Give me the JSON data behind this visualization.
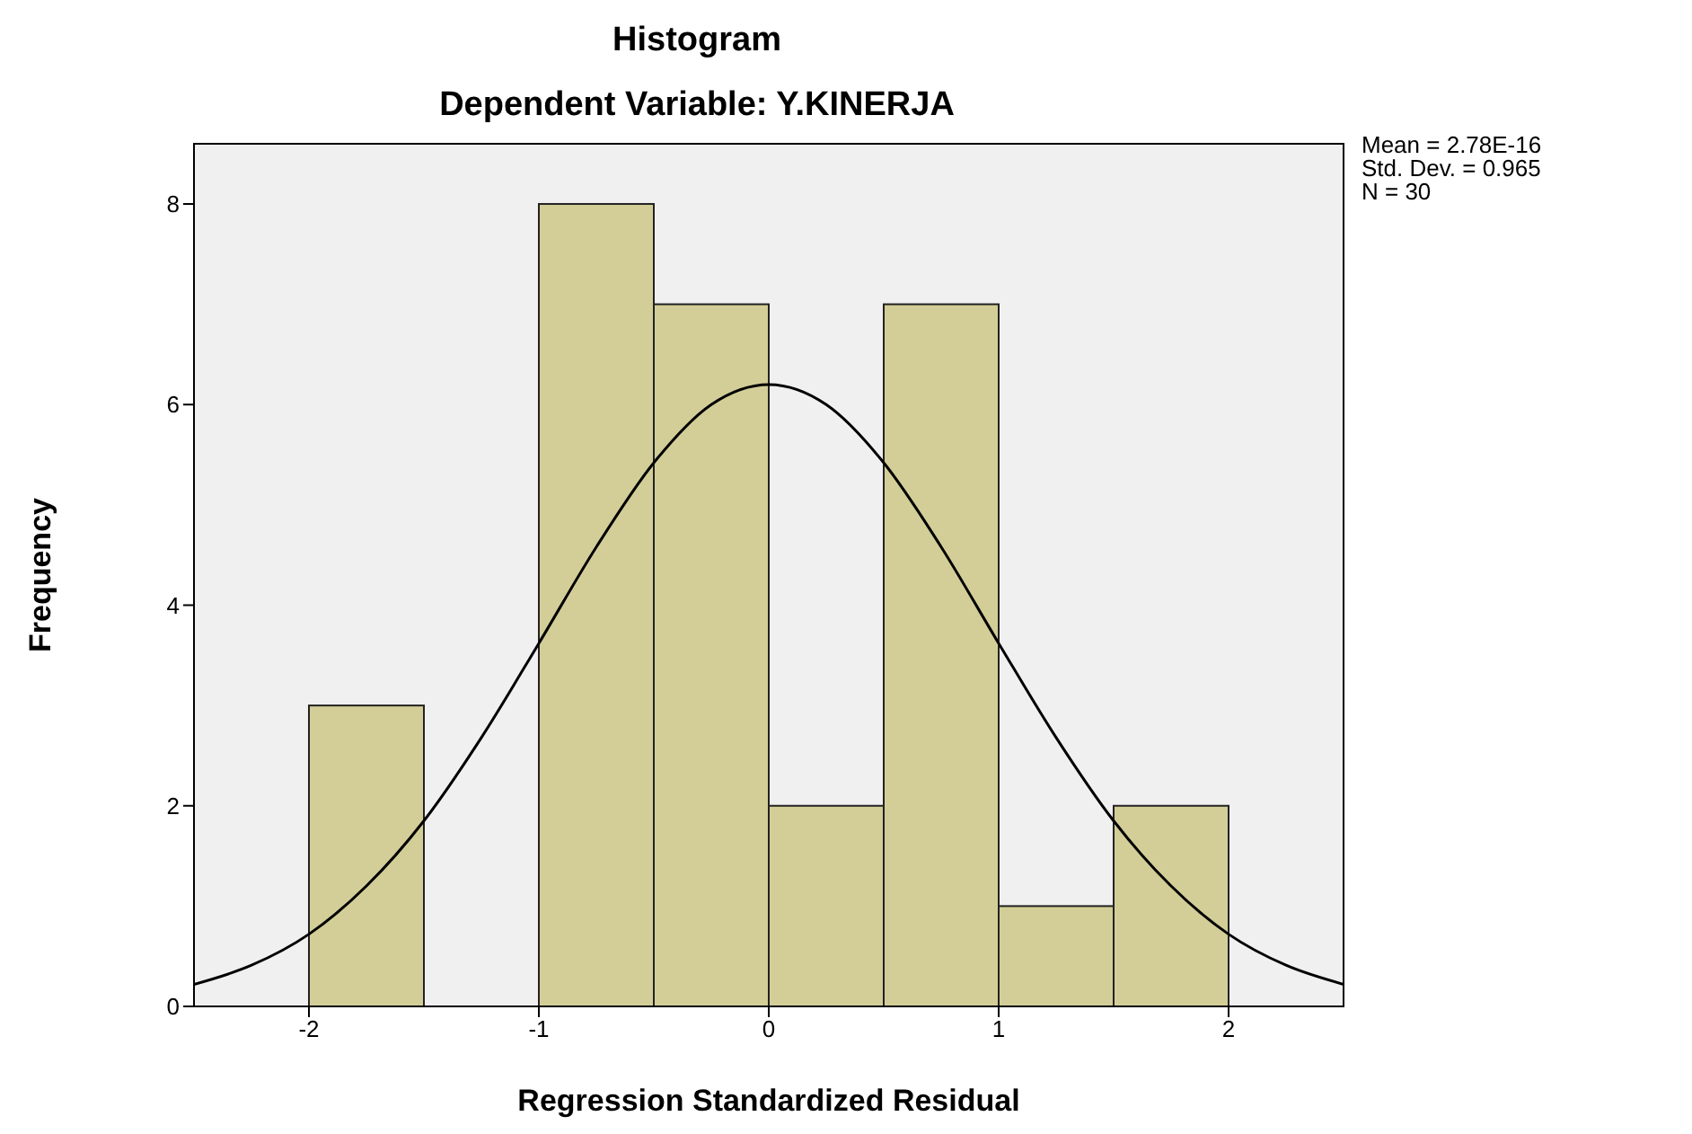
{
  "chart_data": {
    "type": "histogram",
    "title": "Histogram",
    "subtitle": "Dependent Variable: Y.KINERJA",
    "xlabel": "Regression Standardized Residual",
    "ylabel": "Frequency",
    "series": [
      {
        "type": "histogram",
        "bins": [
          -2,
          -1.5,
          -1,
          -0.5,
          0,
          0.5,
          1,
          1.5,
          2
        ],
        "values": [
          3,
          0,
          8,
          7,
          2,
          7,
          1,
          2
        ],
        "color": "#d3ce97"
      },
      {
        "type": "line",
        "x": [
          -2.5,
          -2.25,
          -2,
          -1.75,
          -1.5,
          -1.25,
          -1,
          -0.75,
          -0.5,
          -0.25,
          0,
          0.25,
          0.5,
          0.75,
          1,
          1.25,
          1.5,
          1.75,
          2,
          2.25,
          2.5
        ],
        "values": [
          0.22,
          0.41,
          0.72,
          1.2,
          1.85,
          2.68,
          3.62,
          4.58,
          5.42,
          6.0,
          6.2,
          6.0,
          5.42,
          4.58,
          3.62,
          2.68,
          1.85,
          1.2,
          0.72,
          0.41,
          0.22
        ],
        "color": "#000000"
      }
    ],
    "xlim": [
      -2.5,
      2.5
    ],
    "xticks": [
      -2,
      -1,
      0,
      1,
      2
    ],
    "ylim": [
      0,
      8.6
    ],
    "yticks": [
      0,
      2,
      4,
      6,
      8
    ],
    "annotations": [
      "Mean = 2.78E-16",
      "Std. Dev. = 0.965",
      "N = 30"
    ]
  }
}
